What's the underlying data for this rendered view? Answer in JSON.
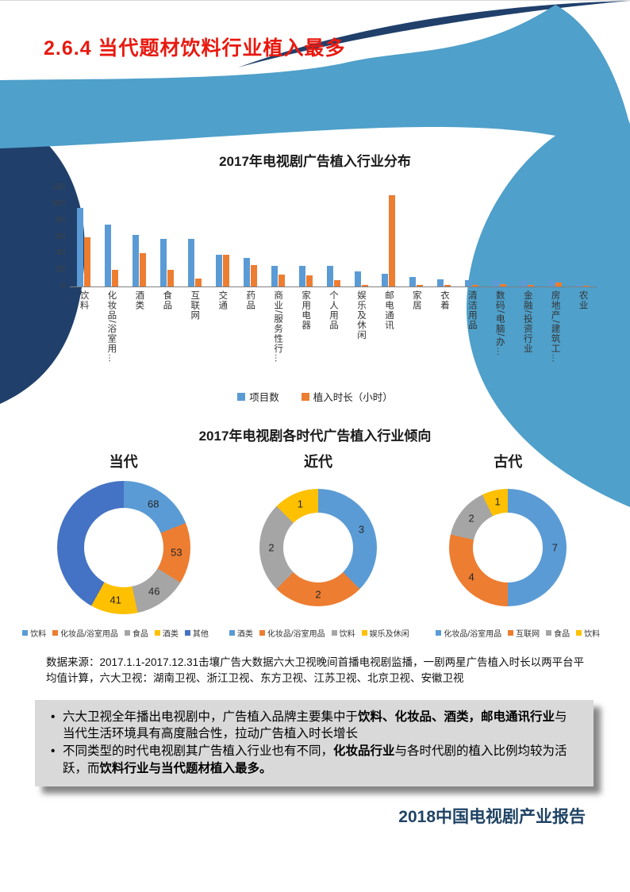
{
  "page": {
    "title": "2.6.4  当代题材饮料行业植入最多",
    "footer": "2018中国电视剧产业报告"
  },
  "colors": {
    "title_red": "#e8190f",
    "navy": "#20406b",
    "light_blue": "#4fa0ca",
    "series_blue": "#5B9BD5",
    "series_orange": "#ED7D31",
    "series_gray": "#A5A5A5",
    "series_yellow": "#FFC000",
    "series_darkblue": "#4472C4"
  },
  "chart_data": [
    {
      "type": "bar",
      "title": "2017年电视剧广告植入行业分布",
      "categories": [
        "饮料",
        "化妆品/浴室用…",
        "酒类",
        "食品",
        "互联网",
        "交通",
        "药品",
        "商业/服务性行…",
        "家用电器",
        "个人用品",
        "娱乐及休闲",
        "邮电通讯",
        "家居",
        "衣着",
        "清洁用品",
        "数码/电脑/办…",
        "金融/投资行业",
        "房地产/建筑工…",
        "农业"
      ],
      "series": [
        {
          "name": "项目数",
          "color": "#5B9BD5",
          "values": [
            95,
            75,
            62,
            58,
            58,
            38,
            35,
            25,
            25,
            25,
            18,
            15,
            12,
            9,
            8,
            8,
            8,
            8,
            3
          ]
        },
        {
          "name": "植入时长（小时）",
          "color": "#ED7D31",
          "values": [
            60,
            20,
            40,
            20,
            10,
            38,
            26,
            14,
            13,
            8,
            2,
            110,
            2,
            2,
            2,
            3,
            2,
            5,
            1
          ]
        }
      ],
      "ylim": [
        0,
        120
      ],
      "yticks": [
        0,
        20,
        40,
        60,
        80,
        100,
        120
      ],
      "legend_position": "bottom",
      "grid": false
    },
    {
      "type": "donut-group",
      "title": "2017年电视剧各时代广告植入行业倾向",
      "donuts": [
        {
          "label": "当代",
          "segments": [
            {
              "name": "饮料",
              "value": 68,
              "color": "#5B9BD5",
              "labeled": true
            },
            {
              "name": "化妆品/浴室用品",
              "value": 53,
              "color": "#ED7D31",
              "labeled": true
            },
            {
              "name": "食品",
              "value": 46,
              "color": "#A5A5A5",
              "labeled": true
            },
            {
              "name": "酒类",
              "value": 41,
              "color": "#FFC000",
              "labeled": true
            },
            {
              "name": "其他",
              "value": 150,
              "color": "#4472C4",
              "labeled": false
            }
          ]
        },
        {
          "label": "近代",
          "segments": [
            {
              "name": "酒类",
              "value": 3,
              "color": "#5B9BD5",
              "labeled": true
            },
            {
              "name": "化妆品/浴室用品",
              "value": 2,
              "color": "#ED7D31",
              "labeled": true
            },
            {
              "name": "饮料",
              "value": 2,
              "color": "#A5A5A5",
              "labeled": true
            },
            {
              "name": "娱乐及休闲",
              "value": 1,
              "color": "#FFC000",
              "labeled": true
            }
          ]
        },
        {
          "label": "古代",
          "segments": [
            {
              "name": "化妆品/浴室用品",
              "value": 7,
              "color": "#5B9BD5",
              "labeled": true
            },
            {
              "name": "互联网",
              "value": 4,
              "color": "#ED7D31",
              "labeled": true
            },
            {
              "name": "食品",
              "value": 2,
              "color": "#A5A5A5",
              "labeled": true
            },
            {
              "name": "饮料",
              "value": 1,
              "color": "#FFC000",
              "labeled": true
            }
          ]
        }
      ]
    }
  ],
  "source_note": "数据来源：2017.1.1-2017.12.31击壤广告大数据六大卫视晚间首播电视剧监播，一剧两星广告植入时长以两平台平均值计算，六大卫视：湖南卫视、浙江卫视、东方卫视、江苏卫视、北京卫视、安徽卫视",
  "callout": {
    "bullets": [
      [
        {
          "text": "六大卫视全年播出电视剧中，广告植入品牌主要集中于",
          "bold": false
        },
        {
          "text": "饮料、化妆品、酒类，邮电通讯行业",
          "bold": true
        },
        {
          "text": "与当代生活环境具有高度融合性，拉动广告植入时长增长",
          "bold": false
        }
      ],
      [
        {
          "text": "不同类型的时代电视剧其广告植入行业也有不同，",
          "bold": false
        },
        {
          "text": "化妆品行业",
          "bold": true
        },
        {
          "text": "与各时代剧的植入比例均较为活跃，而",
          "bold": false
        },
        {
          "text": "饮料行业",
          "bold": true
        },
        {
          "text": "与当代题材植入最多。",
          "bold": true
        }
      ]
    ]
  }
}
